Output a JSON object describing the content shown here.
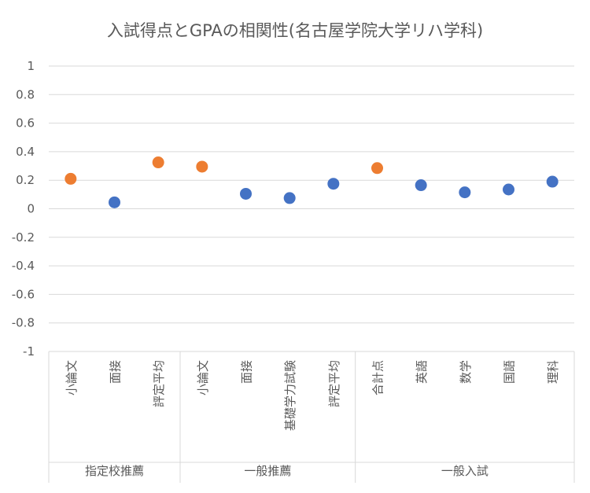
{
  "chart_data": {
    "type": "scatter",
    "title": "入試得点とGPAの相関性(名古屋学院大学リハ学科)",
    "ylim": [
      -1,
      1
    ],
    "y_ticks": [
      "1",
      "0.8",
      "0.6",
      "0.4",
      "0.2",
      "0",
      "-0.2",
      "-0.4",
      "-0.6",
      "-0.8",
      "-1"
    ],
    "y_tick_values": [
      1,
      0.8,
      0.6,
      0.4,
      0.2,
      0,
      -0.2,
      -0.4,
      -0.6,
      -0.8,
      -1
    ],
    "grid": true,
    "groups": [
      {
        "name": "指定校推薦",
        "categories": [
          "小論文",
          "面接",
          "評定平均"
        ]
      },
      {
        "name": "一般推薦",
        "categories": [
          "小論文",
          "面接",
          "基礎学力試験",
          "評定平均"
        ]
      },
      {
        "name": "一般入試",
        "categories": [
          "合計点",
          "英語",
          "数学",
          "国語",
          "理科"
        ]
      }
    ],
    "points": [
      {
        "group": 0,
        "category": "小論文",
        "value": 0.21,
        "color": "#ED7D31"
      },
      {
        "group": 0,
        "category": "面接",
        "value": 0.045,
        "color": "#4472C4"
      },
      {
        "group": 0,
        "category": "評定平均",
        "value": 0.325,
        "color": "#ED7D31"
      },
      {
        "group": 1,
        "category": "小論文",
        "value": 0.295,
        "color": "#ED7D31"
      },
      {
        "group": 1,
        "category": "面接",
        "value": 0.105,
        "color": "#4472C4"
      },
      {
        "group": 1,
        "category": "基礎学力試験",
        "value": 0.075,
        "color": "#4472C4"
      },
      {
        "group": 1,
        "category": "評定平均",
        "value": 0.175,
        "color": "#4472C4"
      },
      {
        "group": 2,
        "category": "合計点",
        "value": 0.285,
        "color": "#ED7D31"
      },
      {
        "group": 2,
        "category": "英語",
        "value": 0.165,
        "color": "#4472C4"
      },
      {
        "group": 2,
        "category": "数学",
        "value": 0.115,
        "color": "#4472C4"
      },
      {
        "group": 2,
        "category": "国語",
        "value": 0.135,
        "color": "#4472C4"
      },
      {
        "group": 2,
        "category": "理科",
        "value": 0.19,
        "color": "#4472C4"
      }
    ],
    "colors": {
      "highlight": "#ED7D31",
      "default": "#4472C4",
      "grid": "#d9d9d9",
      "text": "#595959"
    }
  }
}
